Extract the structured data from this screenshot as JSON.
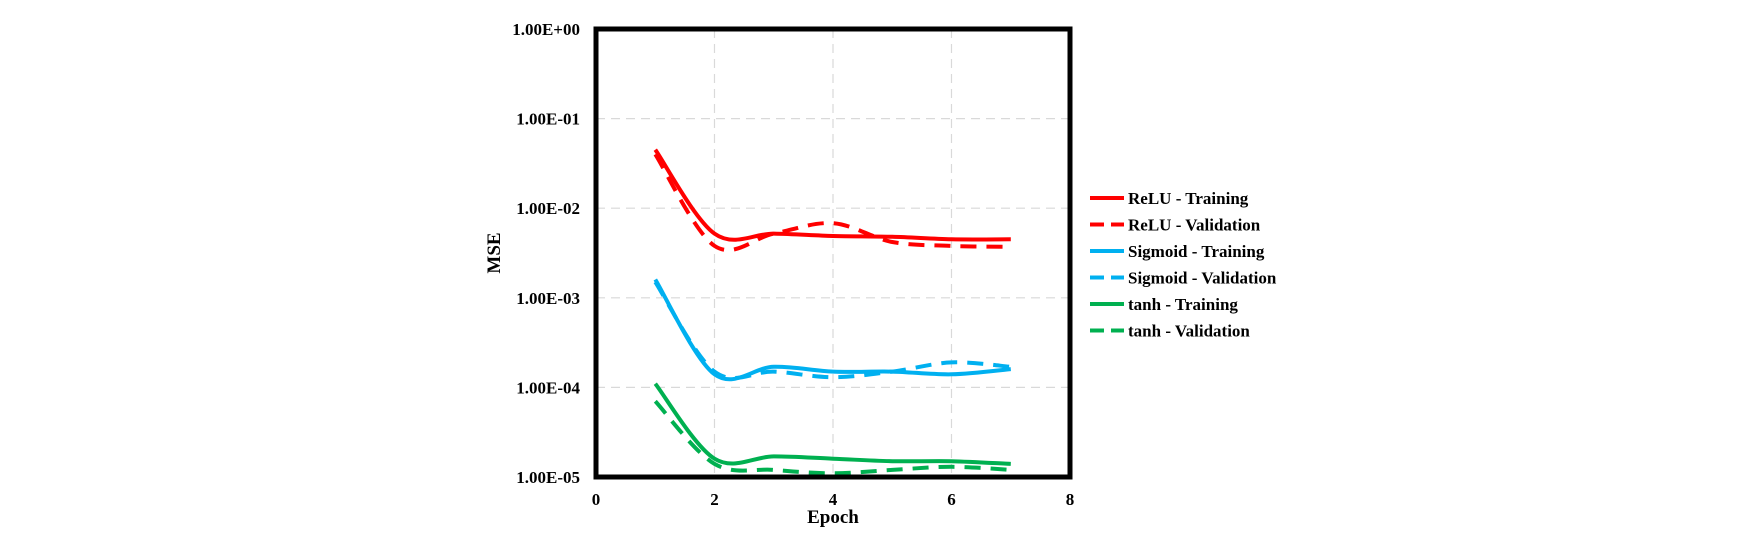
{
  "chart_data": {
    "type": "line",
    "title": "",
    "xlabel": "Epoch",
    "ylabel": "MSE",
    "xlim": [
      0,
      8
    ],
    "ylim": [
      1e-05,
      1
    ],
    "yscale": "log",
    "grid": true,
    "legend_position": "right",
    "x_ticks": [
      "0",
      "2",
      "4",
      "6",
      "8"
    ],
    "y_ticks": [
      "1.00E+00",
      "1.00E-01",
      "1.00E-02",
      "1.00E-03",
      "1.00E-04",
      "1.00E-05"
    ],
    "x_tick_values": [
      0,
      2,
      4,
      6,
      8
    ],
    "y_tick_values": [
      1,
      0.1,
      0.01,
      0.001,
      0.0001,
      1e-05
    ],
    "x": [
      1,
      2,
      3,
      4,
      5,
      6,
      7
    ],
    "series": [
      {
        "name": "ReLU - Training",
        "color": "#ff0000",
        "dash": false,
        "values": [
          0.045,
          0.0052,
          0.0052,
          0.0049,
          0.0048,
          0.0045,
          0.0045
        ]
      },
      {
        "name": "ReLU - Validation",
        "color": "#ff0000",
        "dash": true,
        "values": [
          0.04,
          0.0038,
          0.0052,
          0.0068,
          0.0042,
          0.0038,
          0.0037
        ]
      },
      {
        "name": "Sigmoid - Training",
        "color": "#00b0f0",
        "dash": false,
        "values": [
          0.0016,
          0.00014,
          0.00017,
          0.00015,
          0.00015,
          0.00014,
          0.00016
        ]
      },
      {
        "name": "Sigmoid - Validation",
        "color": "#00b0f0",
        "dash": true,
        "values": [
          0.0015,
          0.00015,
          0.00015,
          0.00013,
          0.00015,
          0.00019,
          0.00017
        ]
      },
      {
        "name": "tanh - Training",
        "color": "#00b050",
        "dash": false,
        "values": [
          0.00011,
          1.6e-05,
          1.7e-05,
          1.6e-05,
          1.5e-05,
          1.5e-05,
          1.4e-05
        ]
      },
      {
        "name": "tanh - Validation",
        "color": "#00b050",
        "dash": true,
        "values": [
          7e-05,
          1.4e-05,
          1.2e-05,
          1.1e-05,
          1.2e-05,
          1.3e-05,
          1.2e-05
        ]
      }
    ]
  }
}
